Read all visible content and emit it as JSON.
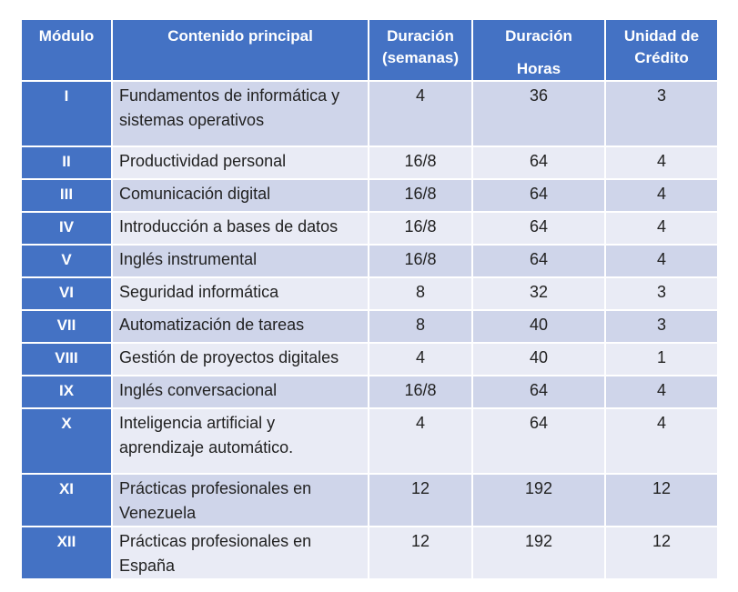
{
  "table": {
    "headers": {
      "module": "Módulo",
      "content": "Contenido principal",
      "weeks_line1": "Duración",
      "weeks_line2": "(semanas)",
      "hours_line1": "Duración",
      "hours_line2": "Horas",
      "credits_line1": "Unidad de",
      "credits_line2": "Crédito"
    },
    "rows": [
      {
        "module": "I",
        "content": "Fundamentos de informática y sistemas operativos",
        "weeks": "4",
        "hours": "36",
        "credits": "3"
      },
      {
        "module": "II",
        "content": "Productividad personal",
        "weeks": "16/8",
        "hours": "64",
        "credits": "4"
      },
      {
        "module": "III",
        "content": "Comunicación digital",
        "weeks": "16/8",
        "hours": "64",
        "credits": "4"
      },
      {
        "module": "IV",
        "content": "Introducción a bases de datos",
        "weeks": "16/8",
        "hours": "64",
        "credits": "4"
      },
      {
        "module": "V",
        "content": "Inglés instrumental",
        "weeks": "16/8",
        "hours": "64",
        "credits": "4"
      },
      {
        "module": "VI",
        "content": "Seguridad informática",
        "weeks": "8",
        "hours": "32",
        "credits": "3"
      },
      {
        "module": "VII",
        "content": "Automatización de tareas",
        "weeks": "8",
        "hours": "40",
        "credits": "3"
      },
      {
        "module": "VIII",
        "content": "Gestión de proyectos digitales",
        "weeks": "4",
        "hours": "40",
        "credits": "1"
      },
      {
        "module": "IX",
        "content": "Inglés conversacional",
        "weeks": "16/8",
        "hours": "64",
        "credits": "4"
      },
      {
        "module": "X",
        "content": "Inteligencia artificial y aprendizaje automático.",
        "weeks": "4",
        "hours": "64",
        "credits": "4"
      },
      {
        "module": "XI",
        "content": "Prácticas profesionales en Venezuela",
        "weeks": "12",
        "hours": "192",
        "credits": "12"
      },
      {
        "module": "XII",
        "content": "Prácticas profesionales en España",
        "weeks": "12",
        "hours": "192",
        "credits": "12"
      }
    ]
  },
  "colors": {
    "header_bg": "#4472c4",
    "row_odd_bg": "#cfd5ea",
    "row_even_bg": "#e9ebf5"
  }
}
